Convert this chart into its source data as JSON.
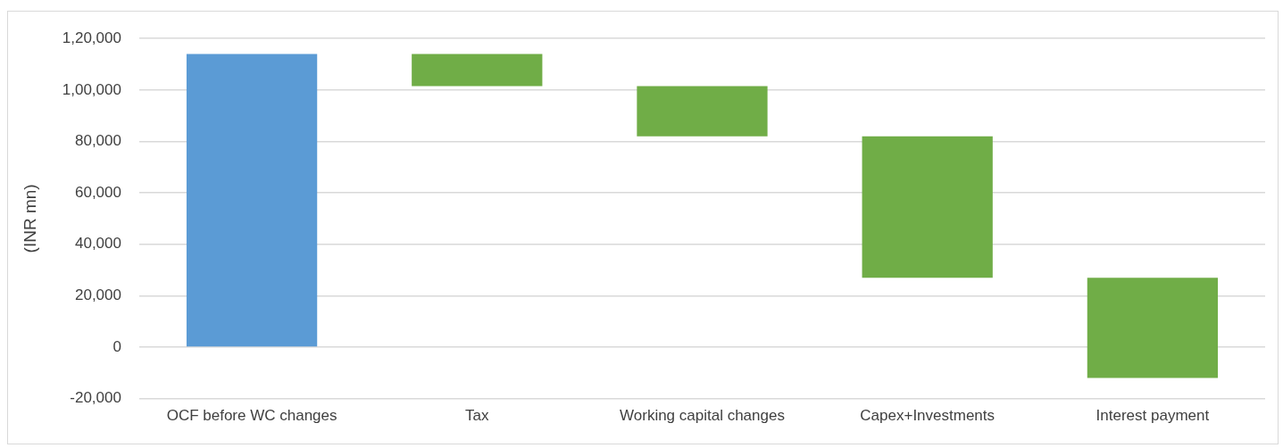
{
  "chart_data": {
    "type": "bar",
    "ylabel": "(INR mn)",
    "categories": [
      "OCF before WC changes",
      "Tax",
      "Working capital changes",
      "Capex+Investments",
      "Interest payment"
    ],
    "values": [
      114000,
      -12500,
      -19500,
      -55000,
      -39000
    ],
    "base": [
      0,
      114000,
      101500,
      82000,
      27000
    ],
    "colors": [
      "#5b9bd5",
      "#70ad47",
      "#70ad47",
      "#70ad47",
      "#70ad47"
    ],
    "ylim": [
      -20000,
      120000
    ],
    "yticks": [
      {
        "value": -20000,
        "label": "-20,000"
      },
      0,
      {
        "value": 20000,
        "label": "20,000"
      },
      {
        "value": 40000,
        "label": "40,000"
      },
      {
        "value": 60000,
        "label": "60,000"
      },
      {
        "value": 80000,
        "label": "80,000"
      },
      {
        "value": 100000,
        "label": "1,00,000"
      },
      {
        "value": 120000,
        "label": "1,20,000"
      }
    ],
    "grid": "y",
    "legend": false
  }
}
